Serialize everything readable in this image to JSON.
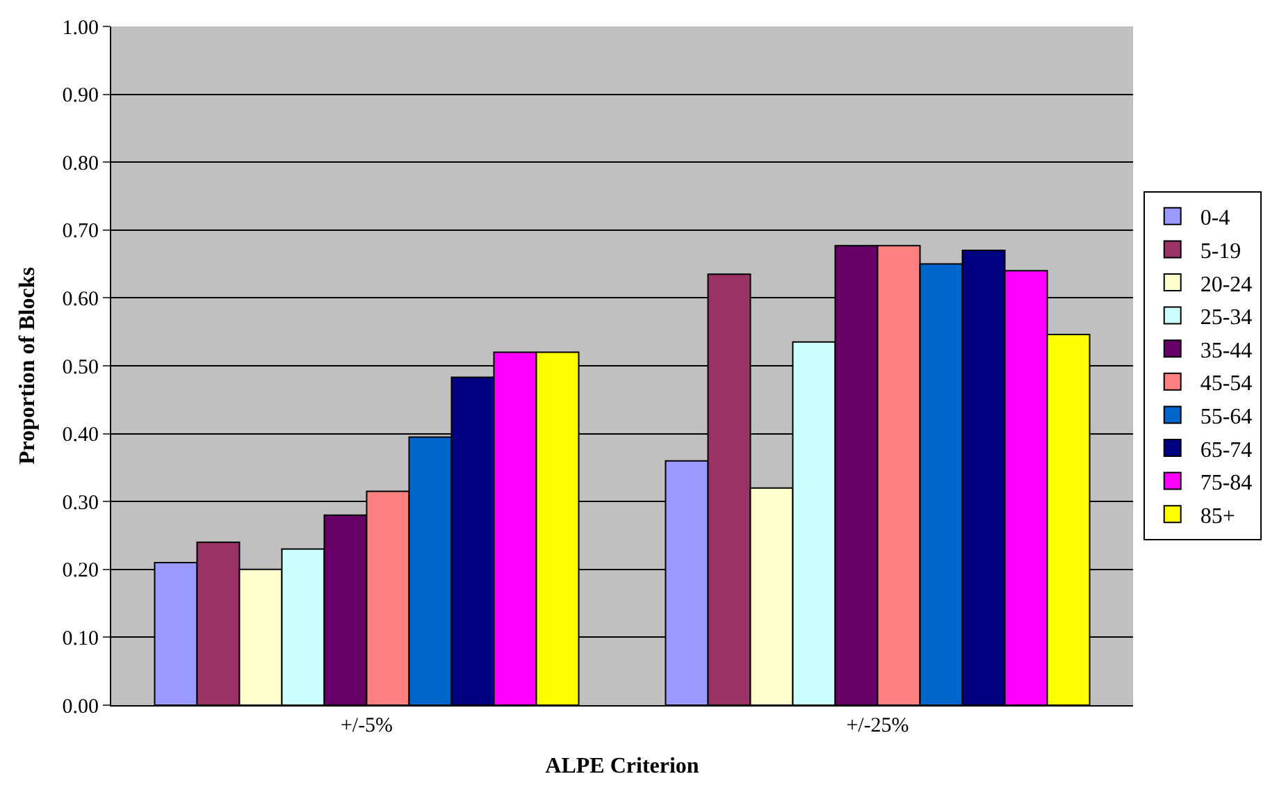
{
  "chart_data": {
    "type": "bar",
    "xlabel": "ALPE Criterion",
    "ylabel": "Proportion of Blocks",
    "categories": [
      "+/-5%",
      "+/-25%"
    ],
    "series": [
      {
        "name": "0-4",
        "color": "#9999ff",
        "values": [
          0.21,
          0.36
        ]
      },
      {
        "name": "5-19",
        "color": "#993366",
        "values": [
          0.24,
          0.635
        ]
      },
      {
        "name": "20-24",
        "color": "#ffffcc",
        "values": [
          0.2,
          0.32
        ]
      },
      {
        "name": "25-34",
        "color": "#ccffff",
        "values": [
          0.23,
          0.535
        ]
      },
      {
        "name": "35-44",
        "color": "#660066",
        "values": [
          0.28,
          0.677
        ]
      },
      {
        "name": "45-54",
        "color": "#ff8080",
        "values": [
          0.315,
          0.677
        ]
      },
      {
        "name": "55-64",
        "color": "#0066cc",
        "values": [
          0.395,
          0.65
        ]
      },
      {
        "name": "65-74",
        "color": "#000080",
        "values": [
          0.483,
          0.67
        ]
      },
      {
        "name": "75-84",
        "color": "#ff00ff",
        "values": [
          0.52,
          0.64
        ]
      },
      {
        "name": "85+",
        "color": "#ffff00",
        "values": [
          0.52,
          0.546
        ]
      }
    ],
    "ylim": [
      0,
      1
    ],
    "yticks": [
      {
        "value": 0,
        "label": "0.00"
      },
      {
        "value": 0.1,
        "label": "0.10"
      },
      {
        "value": 0.2,
        "label": "0.20"
      },
      {
        "value": 0.3,
        "label": "0.30"
      },
      {
        "value": 0.4,
        "label": "0.40"
      },
      {
        "value": 0.5,
        "label": "0.50"
      },
      {
        "value": 0.6,
        "label": "0.60"
      },
      {
        "value": 0.7,
        "label": "0.70"
      },
      {
        "value": 0.8,
        "label": "0.80"
      },
      {
        "value": 0.9,
        "label": "0.90"
      },
      {
        "value": 1,
        "label": "1.00"
      }
    ],
    "grid": "y",
    "legend": "right"
  }
}
